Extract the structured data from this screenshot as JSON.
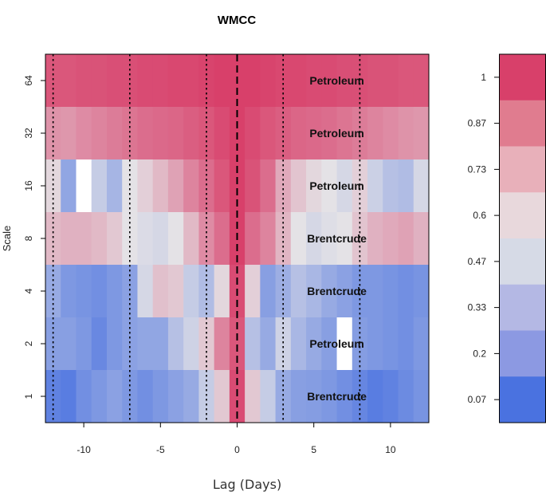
{
  "chart_data": {
    "type": "heatmap",
    "title": "WMCC",
    "xlabel": "Lag (Days)",
    "ylabel": "Scale",
    "xlim": [
      -12.5,
      12.5
    ],
    "x_ticks": [
      -10,
      -5,
      0,
      5,
      10
    ],
    "lags": [
      -12,
      -11,
      -10,
      -9,
      -8,
      -7,
      -6,
      -5,
      -4,
      -3,
      -2,
      -1,
      0,
      1,
      2,
      3,
      4,
      5,
      6,
      7,
      8,
      9,
      10,
      11,
      12
    ],
    "rows": [
      {
        "scale": "64",
        "label": "Petroleum",
        "values": [
          0.92,
          0.92,
          0.93,
          0.93,
          0.94,
          0.94,
          0.95,
          0.95,
          0.96,
          0.96,
          0.97,
          0.98,
          1.0,
          0.98,
          0.97,
          0.96,
          0.96,
          0.95,
          0.95,
          0.94,
          0.94,
          0.93,
          0.93,
          0.92,
          0.92
        ]
      },
      {
        "scale": "32",
        "label": "Petroleum",
        "values": [
          0.76,
          0.75,
          0.78,
          0.8,
          0.82,
          0.84,
          0.86,
          0.87,
          0.88,
          0.9,
          0.92,
          0.95,
          1.0,
          0.95,
          0.92,
          0.9,
          0.88,
          0.87,
          0.86,
          0.84,
          0.82,
          0.8,
          0.78,
          0.76,
          0.75
        ]
      },
      {
        "scale": "16",
        "label": "Petroleum",
        "values": [
          0.58,
          0.28,
          0.0,
          0.45,
          0.35,
          0.55,
          0.6,
          0.66,
          0.72,
          0.8,
          0.86,
          0.92,
          1.0,
          0.93,
          0.86,
          0.7,
          0.63,
          0.58,
          0.55,
          0.5,
          0.6,
          0.47,
          0.4,
          0.38,
          0.5
        ]
      },
      {
        "scale": "8",
        "label": "Brentcrude",
        "values": [
          0.66,
          0.68,
          0.68,
          0.66,
          0.62,
          0.55,
          0.52,
          0.5,
          0.55,
          0.66,
          0.78,
          0.86,
          0.98,
          0.86,
          0.8,
          0.67,
          0.55,
          0.5,
          0.53,
          0.55,
          0.63,
          0.68,
          0.7,
          0.72,
          0.68
        ]
      },
      {
        "scale": "4",
        "label": "Brentcrude",
        "values": [
          0.3,
          0.22,
          0.2,
          0.18,
          0.22,
          0.26,
          0.5,
          0.64,
          0.62,
          0.45,
          0.38,
          0.58,
          0.95,
          0.6,
          0.25,
          0.32,
          0.4,
          0.36,
          0.3,
          0.26,
          0.22,
          0.22,
          0.2,
          0.18,
          0.2
        ]
      },
      {
        "scale": "2",
        "label": "Petroleum",
        "values": [
          0.25,
          0.25,
          0.22,
          0.15,
          0.22,
          0.26,
          0.28,
          0.28,
          0.4,
          0.48,
          0.62,
          0.8,
          0.92,
          0.4,
          0.3,
          0.48,
          0.36,
          0.3,
          0.25,
          0.0,
          0.24,
          0.22,
          0.2,
          0.18,
          0.22
        ]
      },
      {
        "scale": "1",
        "label": "Brentcrude",
        "values": [
          0.12,
          0.1,
          0.18,
          0.22,
          0.26,
          0.22,
          0.18,
          0.22,
          0.26,
          0.3,
          0.45,
          0.62,
          0.95,
          0.62,
          0.45,
          0.3,
          0.25,
          0.24,
          0.22,
          0.18,
          0.14,
          0.1,
          0.12,
          0.16,
          0.2
        ]
      }
    ],
    "vertical_lines": [
      {
        "x": -12,
        "style": "dotted"
      },
      {
        "x": -7,
        "style": "dotted"
      },
      {
        "x": -2,
        "style": "dotted"
      },
      {
        "x": 0,
        "style": "dashed"
      },
      {
        "x": 3,
        "style": "dotted"
      },
      {
        "x": 8,
        "style": "dotted"
      }
    ],
    "colorbar": {
      "tick_labels": [
        "1",
        "0.87",
        "0.73",
        "0.6",
        "0.47",
        "0.33",
        "0.2",
        "0.07"
      ],
      "colors": [
        "#d8406a",
        "#e07c8f",
        "#e8b0ba",
        "#e8d8dc",
        "#d6dae6",
        "#b4b8e4",
        "#8c99e2",
        "#4a72e0"
      ]
    },
    "colors": {
      "low": "#4a72e0",
      "mid": "#e4e2e6",
      "high": "#d8406a",
      "missing": "#ffffff"
    }
  }
}
